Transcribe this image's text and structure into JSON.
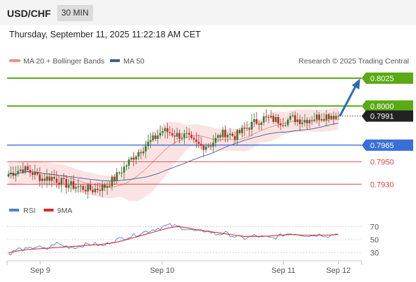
{
  "header": {
    "pair": "USD/CHF",
    "timeframe": "30 MIN"
  },
  "datetime": "Thursday, September 11, 2025 11:22:18 AM CET",
  "legend": {
    "ma20": "MA 20 + Bollinger Bands",
    "ma50": "MA 50",
    "credit": "Research © 2025 Trading Central"
  },
  "rsi_legend": {
    "rsi": "RSI",
    "ma9": "9MA"
  },
  "colors": {
    "green": "#5aaa14",
    "blue": "#3a6fd8",
    "red": "#d94545",
    "dark": "#222222",
    "candle_bull": "#2e7d32",
    "candle_bear": "#c62828",
    "band": "#fbdada",
    "ma20": "#f28b8b",
    "ma50": "#3c5e9c",
    "arrow": "#2f6cb0"
  },
  "chart_data": [
    {
      "type": "candlestick",
      "ylim": [
        0.7915,
        0.8035
      ],
      "levels": [
        {
          "value": 0.8025,
          "label": "0.8025",
          "style": "green-line",
          "role": "target"
        },
        {
          "value": 0.8,
          "label": "0.8000",
          "style": "green-line",
          "role": "target"
        },
        {
          "value": 0.7991,
          "label": "0.7991",
          "style": "dark",
          "role": "last-price"
        },
        {
          "value": 0.7965,
          "label": "0.7965",
          "style": "blue-line",
          "role": "pivot"
        },
        {
          "value": 0.795,
          "label": "0.7950",
          "style": "red-line",
          "role": "support"
        },
        {
          "value": 0.793,
          "label": "0.7930",
          "style": "red-line",
          "role": "support"
        }
      ],
      "x_tick_labels": [
        "Sep 9",
        "Sep 10",
        "Sep 11",
        "Sep 12"
      ],
      "close_path": [
        [
          0,
          0.7939
        ],
        [
          6,
          0.7944
        ],
        [
          10,
          0.794
        ],
        [
          14,
          0.7935
        ],
        [
          18,
          0.7936
        ],
        [
          24,
          0.793
        ],
        [
          30,
          0.7927
        ],
        [
          35,
          0.7925
        ],
        [
          40,
          0.7928
        ],
        [
          44,
          0.7935
        ],
        [
          48,
          0.7945
        ],
        [
          52,
          0.7955
        ],
        [
          56,
          0.7963
        ],
        [
          60,
          0.797
        ],
        [
          64,
          0.7978
        ],
        [
          66,
          0.7977
        ],
        [
          70,
          0.7974
        ],
        [
          74,
          0.7973
        ],
        [
          76,
          0.7968
        ],
        [
          80,
          0.7964
        ],
        [
          84,
          0.7966
        ],
        [
          88,
          0.7974
        ],
        [
          90,
          0.7976
        ],
        [
          94,
          0.7973
        ],
        [
          98,
          0.7979
        ],
        [
          102,
          0.7985
        ],
        [
          106,
          0.7989
        ],
        [
          110,
          0.7988
        ],
        [
          114,
          0.7986
        ],
        [
          118,
          0.7989
        ],
        [
          122,
          0.7987
        ],
        [
          126,
          0.7989
        ],
        [
          130,
          0.7991
        ],
        [
          134,
          0.7992
        ],
        [
          137,
          0.7991
        ]
      ],
      "candle_count": 138,
      "forecast_target": 0.8025
    },
    {
      "type": "line",
      "name": "RSI",
      "ylim": [
        20,
        80
      ],
      "y_ticks": [
        70,
        50,
        30
      ],
      "series": [
        {
          "name": "RSI",
          "values": [
            28,
            36,
            35,
            40,
            35,
            45,
            40,
            38,
            42,
            44,
            40,
            48,
            52,
            55,
            60,
            64,
            68,
            72,
            70,
            66,
            62,
            64,
            58,
            60,
            55,
            52,
            56,
            54,
            52,
            57,
            60,
            58,
            56,
            58,
            56,
            60
          ]
        },
        {
          "name": "9MA",
          "values": [
            30,
            33,
            35,
            36,
            37,
            38,
            39,
            40,
            41,
            42,
            43,
            45,
            48,
            52,
            56,
            60,
            64,
            68,
            70,
            68,
            65,
            63,
            61,
            59,
            57,
            55,
            55,
            55,
            56,
            57,
            58,
            57,
            57,
            57,
            57,
            58
          ]
        }
      ]
    }
  ]
}
